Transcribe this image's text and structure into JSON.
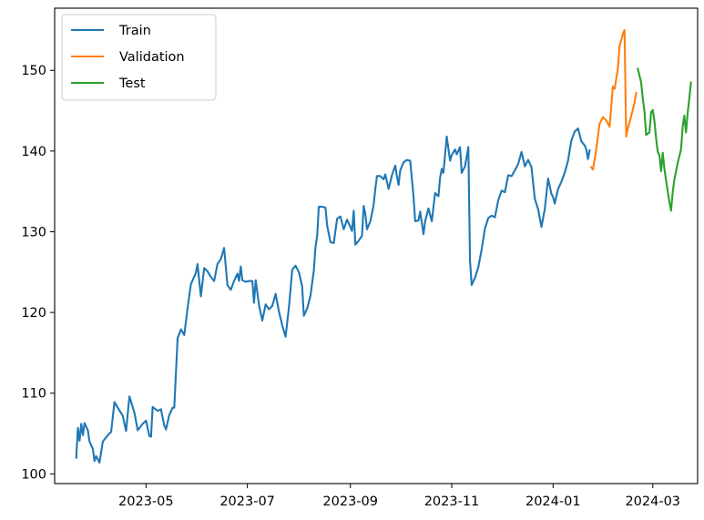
{
  "chart_data": {
    "type": "line",
    "title": "",
    "xlabel": "",
    "ylabel": "",
    "x_type": "date",
    "xlim": [
      "2023-03-07",
      "2024-03-28"
    ],
    "ylim": [
      98.8,
      157.7
    ],
    "x_ticks": [
      {
        "value": "2023-05-01",
        "label": "2023-05"
      },
      {
        "value": "2023-07-01",
        "label": "2023-07"
      },
      {
        "value": "2023-09-01",
        "label": "2023-09"
      },
      {
        "value": "2023-11-01",
        "label": "2023-11"
      },
      {
        "value": "2024-01-01",
        "label": "2024-01"
      },
      {
        "value": "2024-03-01",
        "label": "2024-03"
      }
    ],
    "y_ticks": [
      {
        "value": 100,
        "label": "100"
      },
      {
        "value": 110,
        "label": "110"
      },
      {
        "value": 120,
        "label": "120"
      },
      {
        "value": 130,
        "label": "130"
      },
      {
        "value": 140,
        "label": "140"
      },
      {
        "value": 150,
        "label": "150"
      }
    ],
    "grid": false,
    "legend_position": "top-left",
    "series": [
      {
        "name": "Train",
        "color": "#1f77b4",
        "points": [
          [
            "2023-03-20",
            102.0
          ],
          [
            "2023-03-21",
            105.7
          ],
          [
            "2023-03-22",
            104.1
          ],
          [
            "2023-03-23",
            106.2
          ],
          [
            "2023-03-24",
            104.8
          ],
          [
            "2023-03-25",
            106.3
          ],
          [
            "2023-03-27",
            105.4
          ],
          [
            "2023-03-28",
            104.0
          ],
          [
            "2023-03-30",
            103.1
          ],
          [
            "2023-03-31",
            101.6
          ],
          [
            "2023-04-01",
            102.2
          ],
          [
            "2023-04-03",
            101.4
          ],
          [
            "2023-04-05",
            104.0
          ],
          [
            "2023-04-08",
            104.8
          ],
          [
            "2023-04-10",
            105.2
          ],
          [
            "2023-04-12",
            108.9
          ],
          [
            "2023-04-14",
            108.2
          ],
          [
            "2023-04-17",
            107.2
          ],
          [
            "2023-04-19",
            105.3
          ],
          [
            "2023-04-21",
            109.6
          ],
          [
            "2023-04-24",
            107.6
          ],
          [
            "2023-04-26",
            105.4
          ],
          [
            "2023-04-29",
            106.2
          ],
          [
            "2023-05-01",
            106.6
          ],
          [
            "2023-05-03",
            104.7
          ],
          [
            "2023-05-04",
            104.6
          ],
          [
            "2023-05-05",
            108.3
          ],
          [
            "2023-05-08",
            107.8
          ],
          [
            "2023-05-10",
            108.0
          ],
          [
            "2023-05-12",
            106.0
          ],
          [
            "2023-05-13",
            105.5
          ],
          [
            "2023-05-15",
            107.3
          ],
          [
            "2023-05-17",
            108.2
          ],
          [
            "2023-05-18",
            108.2
          ],
          [
            "2023-05-20",
            116.8
          ],
          [
            "2023-05-22",
            117.9
          ],
          [
            "2023-05-24",
            117.2
          ],
          [
            "2023-05-26",
            120.5
          ],
          [
            "2023-05-28",
            123.5
          ],
          [
            "2023-05-31",
            124.9
          ],
          [
            "2023-06-01",
            126.0
          ],
          [
            "2023-06-03",
            122.0
          ],
          [
            "2023-06-05",
            125.5
          ],
          [
            "2023-06-07",
            125.1
          ],
          [
            "2023-06-09",
            124.4
          ],
          [
            "2023-06-11",
            123.9
          ],
          [
            "2023-06-13",
            126.0
          ],
          [
            "2023-06-15",
            126.6
          ],
          [
            "2023-06-17",
            128.0
          ],
          [
            "2023-06-19",
            123.4
          ],
          [
            "2023-06-21",
            122.8
          ],
          [
            "2023-06-23",
            123.9
          ],
          [
            "2023-06-25",
            124.8
          ],
          [
            "2023-06-26",
            123.9
          ],
          [
            "2023-06-27",
            125.7
          ],
          [
            "2023-06-28",
            124.0
          ],
          [
            "2023-06-30",
            123.8
          ],
          [
            "2023-07-02",
            123.9
          ],
          [
            "2023-07-04",
            123.9
          ],
          [
            "2023-07-05",
            121.2
          ],
          [
            "2023-07-06",
            124.0
          ],
          [
            "2023-07-08",
            120.9
          ],
          [
            "2023-07-10",
            119.0
          ],
          [
            "2023-07-12",
            121.0
          ],
          [
            "2023-07-14",
            120.4
          ],
          [
            "2023-07-16",
            120.8
          ],
          [
            "2023-07-18",
            122.3
          ],
          [
            "2023-07-20",
            120.1
          ],
          [
            "2023-07-22",
            118.4
          ],
          [
            "2023-07-24",
            117.0
          ],
          [
            "2023-07-26",
            120.6
          ],
          [
            "2023-07-28",
            125.3
          ],
          [
            "2023-07-30",
            125.8
          ],
          [
            "2023-08-01",
            125.0
          ],
          [
            "2023-08-03",
            123.2
          ],
          [
            "2023-08-04",
            119.6
          ],
          [
            "2023-08-06",
            120.5
          ],
          [
            "2023-08-08",
            122.1
          ],
          [
            "2023-08-10",
            125.2
          ],
          [
            "2023-08-11",
            128.1
          ],
          [
            "2023-08-12",
            129.5
          ],
          [
            "2023-08-13",
            133.1
          ],
          [
            "2023-08-15",
            133.1
          ],
          [
            "2023-08-17",
            133.0
          ],
          [
            "2023-08-18",
            130.8
          ],
          [
            "2023-08-20",
            128.7
          ],
          [
            "2023-08-22",
            128.6
          ],
          [
            "2023-08-24",
            131.6
          ],
          [
            "2023-08-26",
            131.9
          ],
          [
            "2023-08-28",
            130.3
          ],
          [
            "2023-08-30",
            131.5
          ],
          [
            "2023-09-01",
            130.6
          ],
          [
            "2023-09-02",
            130.1
          ],
          [
            "2023-09-03",
            132.6
          ],
          [
            "2023-09-04",
            128.4
          ],
          [
            "2023-09-06",
            128.9
          ],
          [
            "2023-09-08",
            129.5
          ],
          [
            "2023-09-09",
            133.2
          ],
          [
            "2023-09-10",
            132.2
          ],
          [
            "2023-09-11",
            130.3
          ],
          [
            "2023-09-13",
            131.3
          ],
          [
            "2023-09-15",
            133.3
          ],
          [
            "2023-09-16",
            135.3
          ],
          [
            "2023-09-17",
            136.9
          ],
          [
            "2023-09-19",
            136.9
          ],
          [
            "2023-09-21",
            136.5
          ],
          [
            "2023-09-22",
            137.1
          ],
          [
            "2023-09-24",
            135.3
          ],
          [
            "2023-09-26",
            137.0
          ],
          [
            "2023-09-28",
            138.2
          ],
          [
            "2023-09-29",
            136.9
          ],
          [
            "2023-09-30",
            135.8
          ],
          [
            "2023-10-01",
            137.6
          ],
          [
            "2023-10-03",
            138.6
          ],
          [
            "2023-10-05",
            138.9
          ],
          [
            "2023-10-07",
            138.8
          ],
          [
            "2023-10-09",
            134.4
          ],
          [
            "2023-10-10",
            131.3
          ],
          [
            "2023-10-12",
            131.4
          ],
          [
            "2023-10-13",
            132.5
          ],
          [
            "2023-10-15",
            129.7
          ],
          [
            "2023-10-16",
            131.3
          ],
          [
            "2023-10-18",
            132.9
          ],
          [
            "2023-10-20",
            131.3
          ],
          [
            "2023-10-22",
            134.8
          ],
          [
            "2023-10-24",
            134.4
          ],
          [
            "2023-10-25",
            136.7
          ],
          [
            "2023-10-26",
            137.8
          ],
          [
            "2023-10-27",
            137.3
          ],
          [
            "2023-10-29",
            141.8
          ],
          [
            "2023-10-31",
            138.8
          ],
          [
            "2023-11-01",
            139.5
          ],
          [
            "2023-11-03",
            140.2
          ],
          [
            "2023-11-04",
            139.6
          ],
          [
            "2023-11-06",
            140.5
          ],
          [
            "2023-11-07",
            137.3
          ],
          [
            "2023-11-09",
            138.1
          ],
          [
            "2023-11-11",
            140.5
          ],
          [
            "2023-11-12",
            126.4
          ],
          [
            "2023-11-13",
            123.4
          ],
          [
            "2023-11-15",
            124.3
          ],
          [
            "2023-11-17",
            125.6
          ],
          [
            "2023-11-19",
            127.8
          ],
          [
            "2023-11-21",
            130.4
          ],
          [
            "2023-11-23",
            131.7
          ],
          [
            "2023-11-25",
            132.0
          ],
          [
            "2023-11-27",
            131.8
          ],
          [
            "2023-11-29",
            133.9
          ],
          [
            "2023-12-01",
            135.1
          ],
          [
            "2023-12-03",
            134.9
          ],
          [
            "2023-12-05",
            137.0
          ],
          [
            "2023-12-07",
            136.9
          ],
          [
            "2023-12-09",
            137.6
          ],
          [
            "2023-12-11",
            138.4
          ],
          [
            "2023-12-13",
            139.9
          ],
          [
            "2023-12-15",
            138.1
          ],
          [
            "2023-12-17",
            138.9
          ],
          [
            "2023-12-19",
            138.0
          ],
          [
            "2023-12-21",
            134.1
          ],
          [
            "2023-12-23",
            132.8
          ],
          [
            "2023-12-25",
            130.6
          ],
          [
            "2023-12-27",
            132.8
          ],
          [
            "2023-12-29",
            136.6
          ],
          [
            "2023-12-31",
            134.7
          ],
          [
            "2024-01-01",
            134.3
          ],
          [
            "2024-01-02",
            133.5
          ],
          [
            "2024-01-04",
            135.3
          ],
          [
            "2024-01-06",
            136.2
          ],
          [
            "2024-01-08",
            137.3
          ],
          [
            "2024-01-10",
            138.8
          ],
          [
            "2024-01-12",
            141.3
          ],
          [
            "2024-01-14",
            142.4
          ],
          [
            "2024-01-16",
            142.8
          ],
          [
            "2024-01-18",
            141.2
          ],
          [
            "2024-01-20",
            140.7
          ],
          [
            "2024-01-21",
            140.2
          ],
          [
            "2024-01-22",
            139.0
          ],
          [
            "2024-01-23",
            140.1
          ]
        ]
      },
      {
        "name": "Validation",
        "color": "#ff7f0e",
        "points": [
          [
            "2024-01-24",
            138.0
          ],
          [
            "2024-01-25",
            137.7
          ],
          [
            "2024-01-27",
            140.2
          ],
          [
            "2024-01-28",
            141.8
          ],
          [
            "2024-01-29",
            143.4
          ],
          [
            "2024-01-31",
            144.2
          ],
          [
            "2024-02-02",
            143.8
          ],
          [
            "2024-02-04",
            143.0
          ],
          [
            "2024-02-06",
            148.0
          ],
          [
            "2024-02-07",
            147.7
          ],
          [
            "2024-02-09",
            150.2
          ],
          [
            "2024-02-10",
            153.0
          ],
          [
            "2024-02-12",
            154.5
          ],
          [
            "2024-02-13",
            155.0
          ],
          [
            "2024-02-14",
            141.8
          ],
          [
            "2024-02-15",
            142.8
          ],
          [
            "2024-02-17",
            144.3
          ],
          [
            "2024-02-19",
            146.0
          ],
          [
            "2024-02-20",
            147.2
          ]
        ]
      },
      {
        "name": "Test",
        "color": "#2ca02c",
        "points": [
          [
            "2024-02-21",
            150.2
          ],
          [
            "2024-02-23",
            148.5
          ],
          [
            "2024-02-24",
            146.5
          ],
          [
            "2024-02-25",
            144.9
          ],
          [
            "2024-02-26",
            142.0
          ],
          [
            "2024-02-28",
            142.3
          ],
          [
            "2024-02-29",
            144.8
          ],
          [
            "2024-03-01",
            145.1
          ],
          [
            "2024-03-02",
            143.7
          ],
          [
            "2024-03-03",
            141.6
          ],
          [
            "2024-03-04",
            139.9
          ],
          [
            "2024-03-05",
            139.5
          ],
          [
            "2024-03-06",
            137.5
          ],
          [
            "2024-03-07",
            139.8
          ],
          [
            "2024-03-08",
            137.8
          ],
          [
            "2024-03-10",
            135.0
          ],
          [
            "2024-03-11",
            133.7
          ],
          [
            "2024-03-12",
            132.6
          ],
          [
            "2024-03-13",
            134.9
          ],
          [
            "2024-03-14",
            136.5
          ],
          [
            "2024-03-16",
            138.5
          ],
          [
            "2024-03-18",
            140.2
          ],
          [
            "2024-03-19",
            143.0
          ],
          [
            "2024-03-20",
            144.4
          ],
          [
            "2024-03-21",
            142.3
          ],
          [
            "2024-03-22",
            144.7
          ],
          [
            "2024-03-23",
            146.5
          ],
          [
            "2024-03-24",
            148.5
          ]
        ]
      }
    ]
  }
}
